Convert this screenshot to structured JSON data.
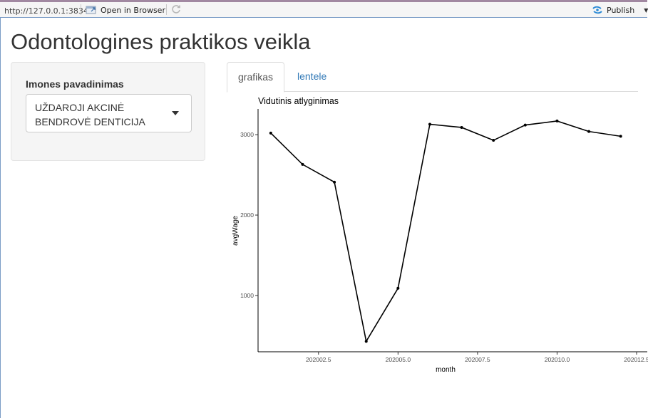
{
  "browser": {
    "url": "http://127.0.0.1:3834",
    "open_in_browser": "Open in Browser",
    "publish": "Publish"
  },
  "page": {
    "title": "Odontologines praktikos veikla"
  },
  "sidebar": {
    "label": "Imones pavadinimas",
    "selected": "UŽDAROJI AKCINĖ BENDROVĖ DENTICIJA"
  },
  "tabs": [
    {
      "label": "grafikas",
      "active": true
    },
    {
      "label": "lentele",
      "active": false
    }
  ],
  "colors": {
    "link": "#337ab7",
    "line": "#000000",
    "publish_icon": "#2b8ad6"
  },
  "chart_data": {
    "type": "line",
    "title": "Vidutinis atlyginimas",
    "xlabel": "month",
    "ylabel": "avgWage",
    "x": [
      202001,
      202002,
      202003,
      202004,
      202005,
      202006,
      202007,
      202008,
      202009,
      202010,
      202011,
      202012
    ],
    "values": [
      3020,
      2630,
      2410,
      430,
      1090,
      3130,
      3090,
      2930,
      3120,
      3170,
      3040,
      2980
    ],
    "xticks": [
      202002.5,
      202005.0,
      202007.5,
      202010.0,
      202012.5
    ],
    "xtick_labels": [
      "202002.5",
      "202005.0",
      "202007.5",
      "202010.0",
      "202012.5"
    ],
    "yticks": [
      1000,
      2000,
      3000
    ],
    "xlim": [
      202000.6,
      202012.5
    ],
    "ylim": [
      300,
      3320
    ],
    "grid": false,
    "legend": "none"
  }
}
